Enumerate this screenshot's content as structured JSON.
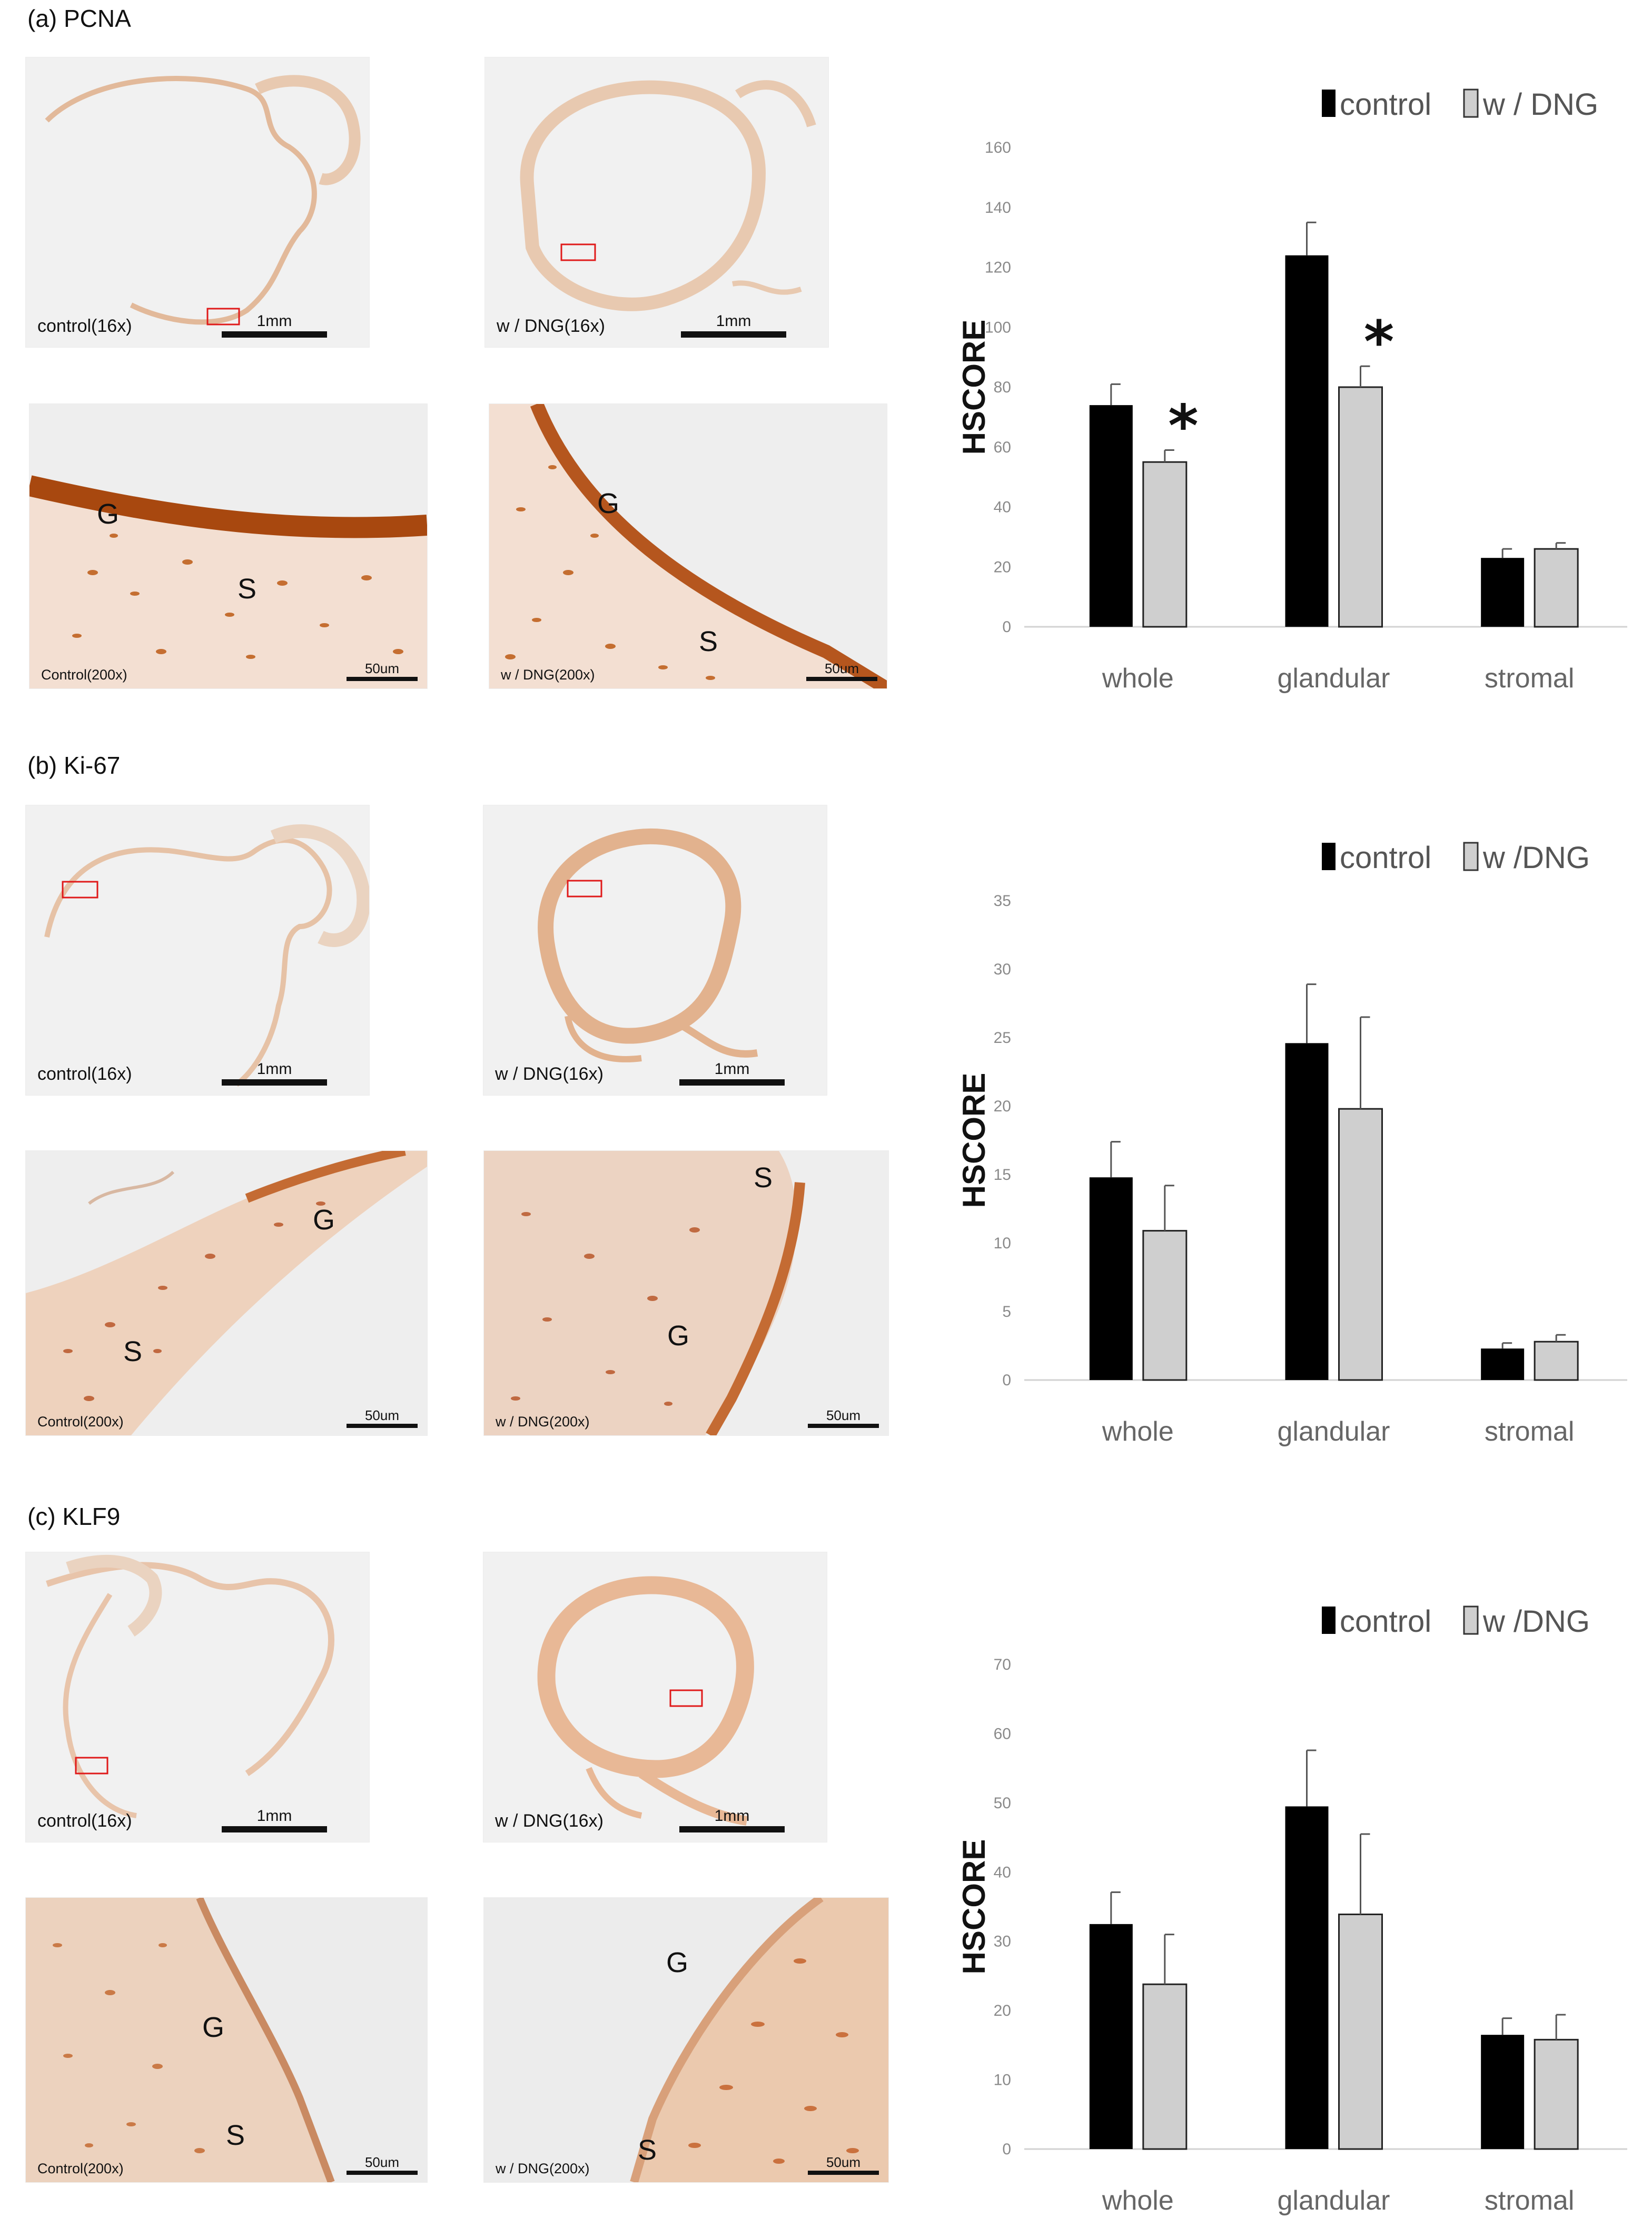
{
  "panels": [
    {
      "label": "(a) PCNA",
      "images": {
        "ctrl_low": {
          "caption": "control(16x)",
          "scale": "1mm"
        },
        "dng_low": {
          "caption": "w / DNG(16x)",
          "scale": "1mm"
        },
        "ctrl_high": {
          "caption": "Control(200x)",
          "scale": "50um",
          "g": "G",
          "s": "S"
        },
        "dng_high": {
          "caption": "w / DNG(200x)",
          "scale": "50um",
          "g": "G",
          "s": "S"
        }
      }
    },
    {
      "label": "(b) Ki-67",
      "images": {
        "ctrl_low": {
          "caption": "control(16x)",
          "scale": "1mm"
        },
        "dng_low": {
          "caption": "w / DNG(16x)",
          "scale": "1mm"
        },
        "ctrl_high": {
          "caption": "Control(200x)",
          "scale": "50um",
          "g": "G",
          "s": "S"
        },
        "dng_high": {
          "caption": "w / DNG(200x)",
          "scale": "50um",
          "g": "G",
          "s": "S"
        }
      }
    },
    {
      "label": "(c) KLF9",
      "images": {
        "ctrl_low": {
          "caption": "control(16x)",
          "scale": "1mm"
        },
        "dng_low": {
          "caption": "w / DNG(16x)",
          "scale": "1mm"
        },
        "ctrl_high": {
          "caption": "Control(200x)",
          "scale": "50um",
          "g": "G",
          "s": "S"
        },
        "dng_high": {
          "caption": "w / DNG(200x)",
          "scale": "50um",
          "g": "G",
          "s": "S"
        }
      }
    }
  ],
  "colors": {
    "control": "#000000",
    "dng": "#cfcfcf",
    "tissue": "#e9c4a6",
    "stain": "#b5561e"
  },
  "chart_data": [
    {
      "type": "bar",
      "title": "PCNA",
      "ylabel": "HSCORE",
      "categories": [
        "whole",
        "glandular",
        "stromal"
      ],
      "ylim": [
        0,
        160
      ],
      "yticks": [
        0,
        20,
        40,
        60,
        80,
        100,
        120,
        140,
        160
      ],
      "series": [
        {
          "name": "control",
          "values": [
            74,
            124,
            23
          ],
          "errors": [
            7,
            11,
            3
          ]
        },
        {
          "name": "w / DNG",
          "values": [
            55,
            80,
            26
          ],
          "errors": [
            4,
            7,
            2
          ]
        }
      ],
      "significance": [
        {
          "category": "whole",
          "series": "w / DNG",
          "mark": "*"
        },
        {
          "category": "glandular",
          "series": "w / DNG",
          "mark": "*"
        }
      ]
    },
    {
      "type": "bar",
      "title": "Ki-67",
      "ylabel": "HSCORE",
      "categories": [
        "whole",
        "glandular",
        "stromal"
      ],
      "ylim": [
        0,
        35
      ],
      "yticks": [
        0,
        5,
        10,
        15,
        20,
        25,
        30,
        35
      ],
      "series": [
        {
          "name": "control",
          "values": [
            14.8,
            24.6,
            2.3
          ],
          "errors": [
            2.6,
            4.3,
            0.4
          ]
        },
        {
          "name": "w /DNG",
          "values": [
            10.9,
            19.8,
            2.8
          ],
          "errors": [
            3.3,
            6.7,
            0.5
          ]
        }
      ],
      "significance": []
    },
    {
      "type": "bar",
      "title": "KLF9",
      "ylabel": "HSCORE",
      "categories": [
        "whole",
        "glandular",
        "stromal"
      ],
      "ylim": [
        0,
        70
      ],
      "yticks": [
        0,
        10,
        20,
        30,
        40,
        50,
        60,
        70
      ],
      "series": [
        {
          "name": "control",
          "values": [
            32.5,
            49.5,
            16.5
          ],
          "errors": [
            4.6,
            8.1,
            2.4
          ]
        },
        {
          "name": "w /DNG",
          "values": [
            23.8,
            33.9,
            15.8
          ],
          "errors": [
            7.2,
            11.6,
            3.6
          ]
        }
      ],
      "significance": []
    }
  ]
}
